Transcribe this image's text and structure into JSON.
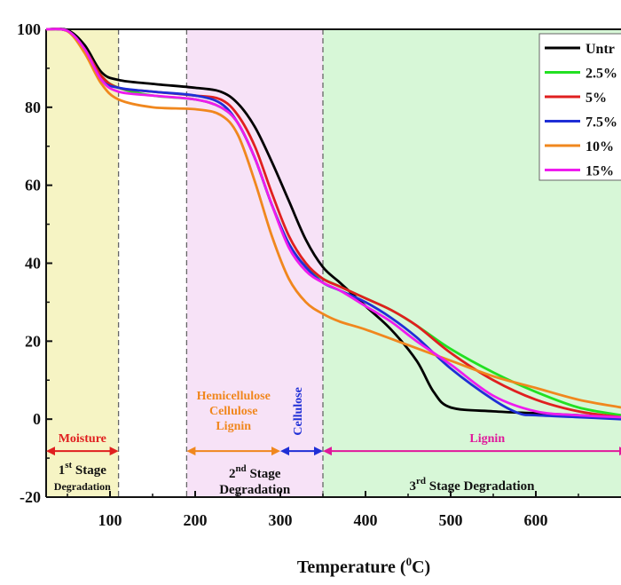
{
  "chart_data": {
    "type": "line",
    "xlabel": "Temperature (°C)",
    "ylabel": "",
    "xlim": [
      25,
      700
    ],
    "ylim": [
      -20,
      100
    ],
    "x_ticks": [
      "100",
      "200",
      "300",
      "400",
      "500",
      "600"
    ],
    "y_ticks": [
      "100",
      "80",
      "60",
      "40",
      "20",
      "0",
      "-20"
    ],
    "regions": [
      {
        "name": "moisture",
        "x_start": 25,
        "x_end": 110,
        "color": "#f6f4c4"
      },
      {
        "name": "second-stage",
        "x_start": 190,
        "x_end": 350,
        "color": "#f7e2f7"
      },
      {
        "name": "third-stage",
        "x_start": 350,
        "x_end": 700,
        "color": "#d7f7d7"
      }
    ],
    "annotations": {
      "moisture": {
        "label": "Moisture",
        "color": "#e01f1f",
        "x_start": 25,
        "x_end": 110
      },
      "hemicellulose": {
        "lines": [
          "Hemicellulose",
          "Cellulose",
          "Lignin"
        ],
        "color": "#f0871e",
        "x_start": 190,
        "x_end": 300
      },
      "cellulose": {
        "label": "Cellulose",
        "color": "#1f2fd6",
        "x_start": 300,
        "x_end": 350
      },
      "lignin": {
        "label": "Lignin",
        "color": "#e0189b",
        "x_start": 350,
        "x_end": 700
      },
      "stage1": {
        "main": "1",
        "sup": "st",
        "rest": " Stage",
        "line2": "Degradation"
      },
      "stage2": {
        "main": "2",
        "sup": "nd",
        "rest": " Stage",
        "line2": "Degradation"
      },
      "stage3": {
        "main": "3",
        "sup": "rd",
        "rest": " Stage Degradation"
      }
    },
    "series": [
      {
        "name": "Untr",
        "color": "#000000",
        "x": [
          25,
          50,
          70,
          90,
          110,
          150,
          200,
          230,
          250,
          270,
          290,
          310,
          330,
          350,
          370,
          400,
          430,
          460,
          480,
          500,
          550,
          600,
          650,
          700
        ],
        "values": [
          100,
          99.8,
          96,
          89,
          87,
          86,
          85,
          84,
          81,
          75,
          66,
          56,
          46,
          39,
          35,
          29,
          23,
          15,
          7,
          3,
          2,
          1.5,
          1,
          0.5
        ]
      },
      {
        "name": "2.5%",
        "color": "#22e022",
        "x": [
          25,
          50,
          70,
          90,
          110,
          150,
          200,
          230,
          250,
          270,
          290,
          310,
          330,
          350,
          370,
          400,
          430,
          460,
          500,
          550,
          600,
          650,
          700
        ],
        "values": [
          100,
          99.6,
          95,
          88,
          85,
          83,
          82,
          80,
          76,
          67,
          55,
          45,
          39,
          36,
          34,
          31,
          28,
          24,
          18,
          12,
          7,
          3,
          1
        ]
      },
      {
        "name": "5%",
        "color": "#e01f1f",
        "x": [
          25,
          50,
          70,
          90,
          110,
          150,
          200,
          230,
          250,
          270,
          290,
          310,
          330,
          350,
          370,
          400,
          430,
          460,
          500,
          550,
          600,
          650,
          700
        ],
        "values": [
          100,
          99.6,
          95,
          88,
          85,
          84,
          83,
          82,
          78,
          70,
          58,
          47,
          40,
          36,
          34,
          31,
          28,
          24,
          17,
          10,
          5,
          2,
          0.5
        ]
      },
      {
        "name": "7.5%",
        "color": "#1f2fd6",
        "x": [
          25,
          50,
          70,
          90,
          110,
          150,
          200,
          230,
          250,
          270,
          290,
          310,
          330,
          350,
          370,
          400,
          430,
          460,
          500,
          550,
          580,
          600,
          650,
          700
        ],
        "values": [
          100,
          99.6,
          95,
          87,
          85,
          84,
          83,
          81,
          76,
          67,
          55,
          45,
          39,
          35,
          33,
          30,
          26,
          21,
          13,
          5,
          1.5,
          1,
          0.5,
          0
        ]
      },
      {
        "name": "10%",
        "color": "#f0871e",
        "x": [
          25,
          50,
          70,
          90,
          110,
          150,
          200,
          230,
          250,
          270,
          290,
          310,
          330,
          350,
          370,
          400,
          450,
          500,
          550,
          600,
          650,
          700
        ],
        "values": [
          100,
          99.5,
          94,
          86,
          82,
          80,
          79.5,
          78,
          73,
          61,
          47,
          36,
          30,
          27,
          25,
          23,
          19,
          15,
          11,
          8,
          5,
          3
        ]
      },
      {
        "name": "15%",
        "color": "#ee1cee",
        "x": [
          25,
          50,
          70,
          90,
          110,
          150,
          200,
          230,
          250,
          270,
          290,
          310,
          330,
          350,
          370,
          400,
          430,
          460,
          500,
          550,
          600,
          650,
          700
        ],
        "values": [
          100,
          99.6,
          95,
          87,
          84,
          83,
          82,
          80,
          76,
          67,
          55,
          44,
          38,
          35,
          33,
          29,
          25,
          20,
          14,
          6,
          2,
          1,
          0.5
        ]
      }
    ]
  }
}
